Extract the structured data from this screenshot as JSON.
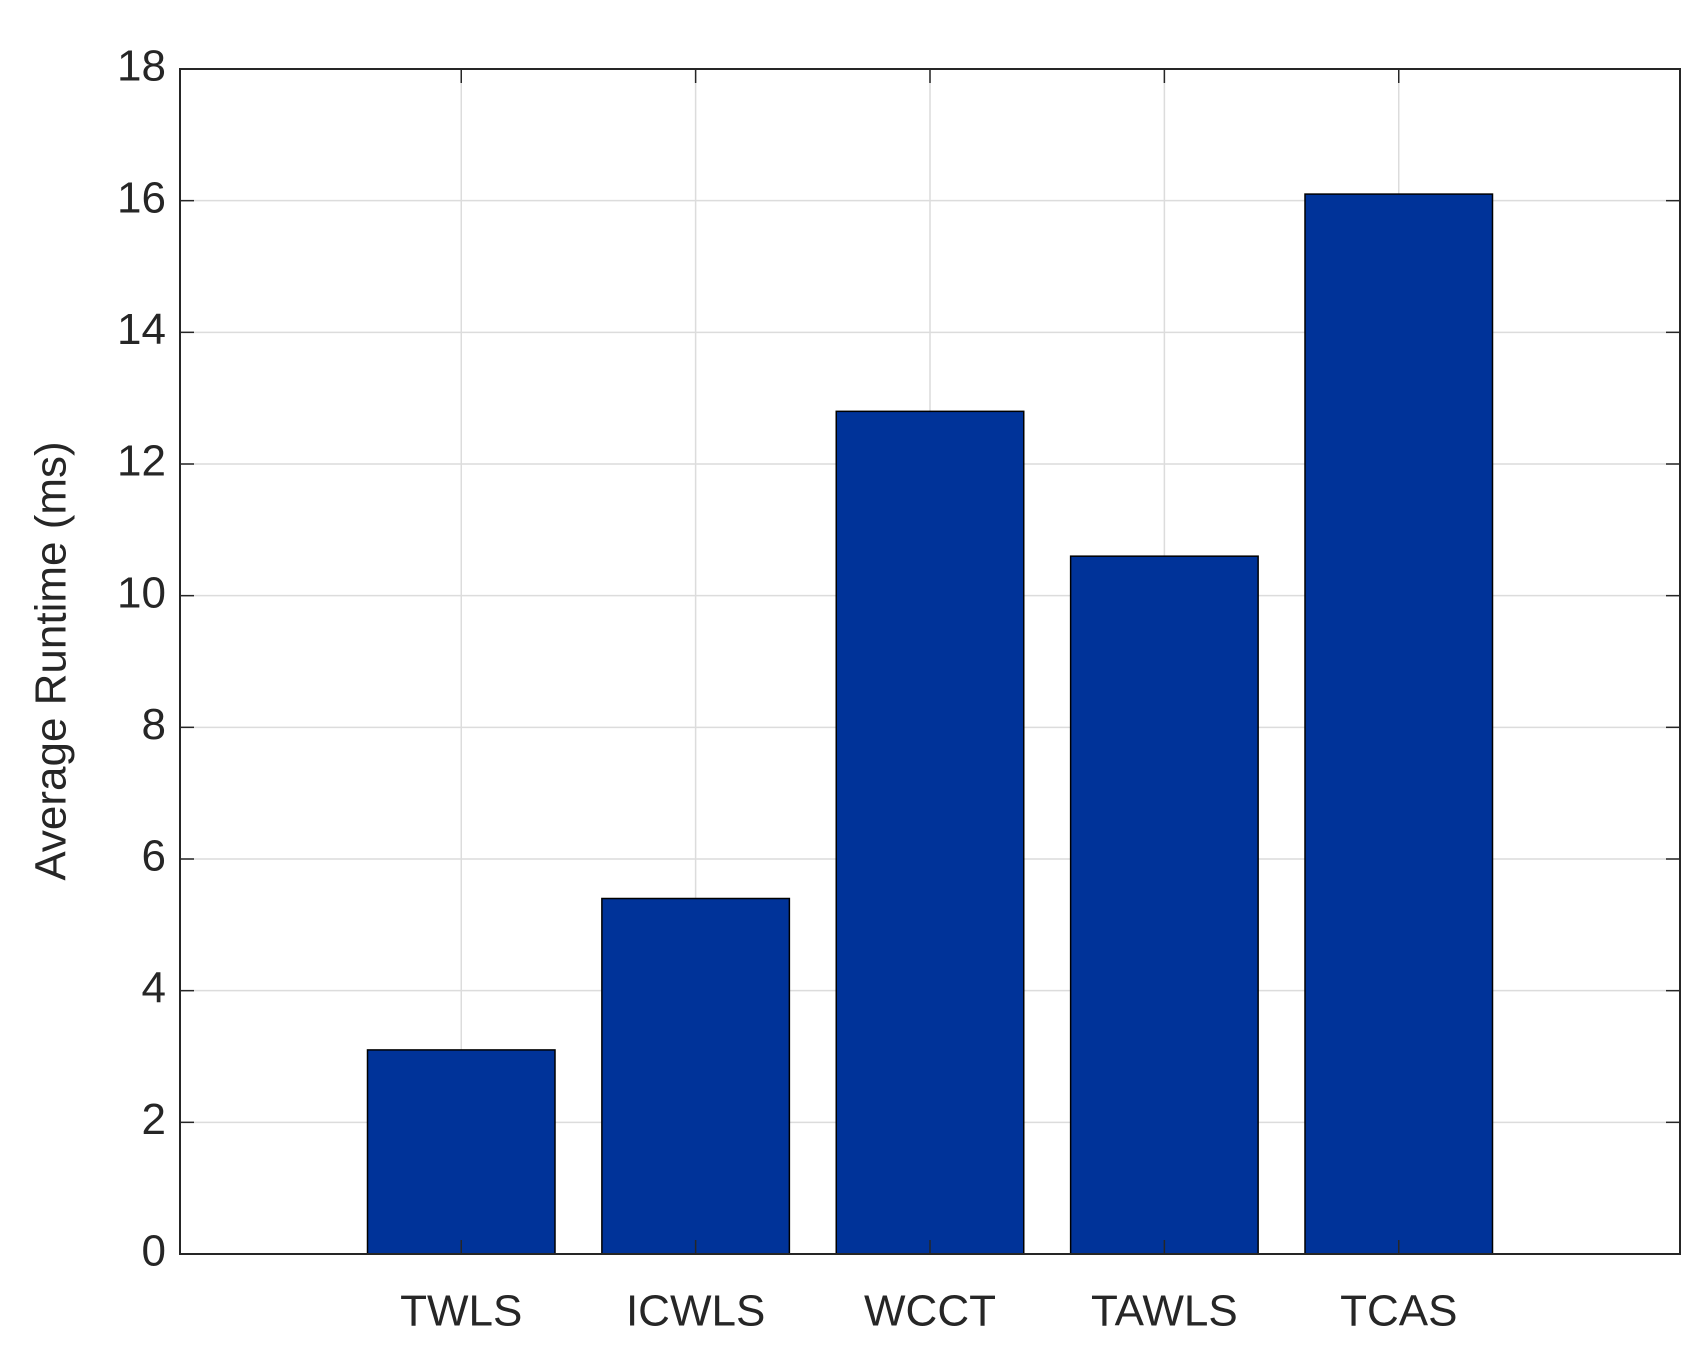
{
  "chart_data": {
    "type": "bar",
    "y_label": "Average Runtime (ms)",
    "categories": [
      "TWLS",
      "ICWLS",
      "WCCT",
      "TAWLS",
      "TCAS"
    ],
    "values": [
      3.1,
      5.4,
      12.8,
      10.6,
      16.1
    ],
    "color": "#003399",
    "ylim": [
      0,
      18
    ],
    "yticks": [
      0,
      2,
      4,
      6,
      8,
      10,
      12,
      14,
      16,
      18
    ],
    "grid": true
  }
}
